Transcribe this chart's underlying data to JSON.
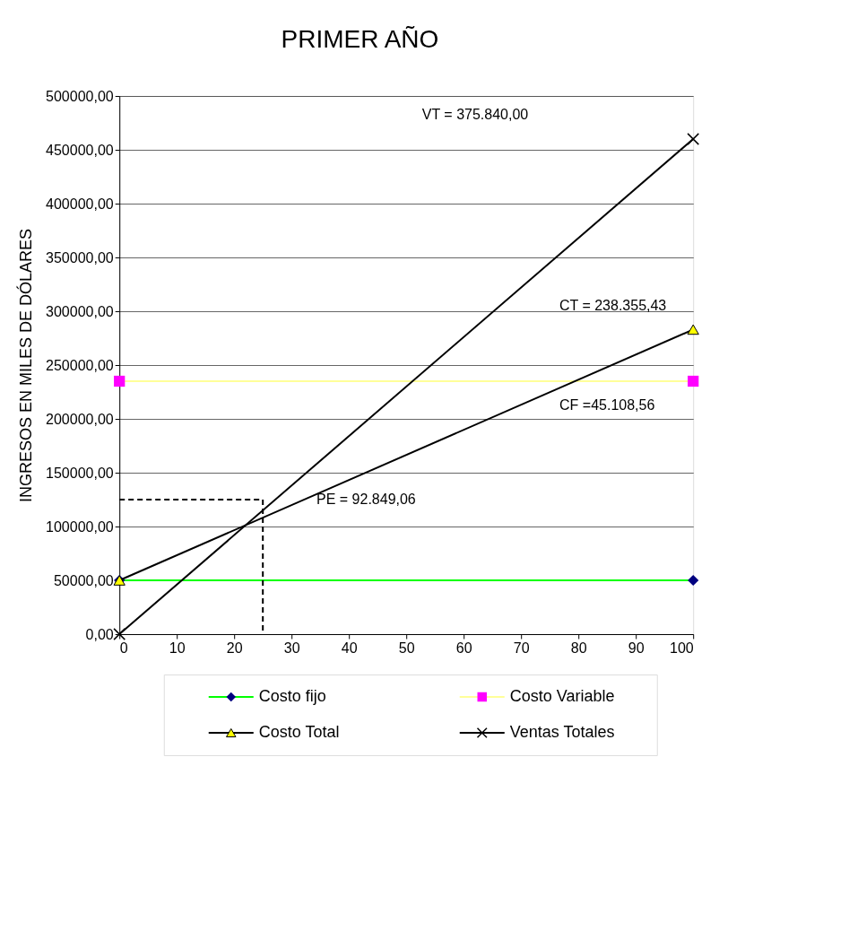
{
  "chart_data": {
    "type": "line",
    "title": "PRIMER AÑO",
    "ylabel": "INGRESOS EN MILES DE DÓLARES",
    "x": [
      0,
      100
    ],
    "series": [
      {
        "name": "Costo fijo",
        "color": "#00ff00",
        "colors": [
          "#000080",
          "#000080"
        ],
        "marker": "diamond",
        "values": [
          50000,
          50000
        ]
      },
      {
        "name": "Costo Variable",
        "color": "#ffff99",
        "colors": [
          "#ff00ff",
          "#ff00ff"
        ],
        "marker": "square",
        "values": [
          235000,
          235000
        ]
      },
      {
        "name": "Costo Total",
        "color": "#000000",
        "colors": [
          "#ffff00",
          "#ffff00"
        ],
        "marker": "triangle",
        "values": [
          50000,
          283000
        ]
      },
      {
        "name": "Ventas Totales",
        "color": "#000000",
        "colors": [
          "#000000",
          "#000000"
        ],
        "marker": "cross",
        "values": [
          0,
          460000
        ]
      }
    ],
    "annotations": [
      "VT = 375.840,00",
      "CT = 238.355,43",
      "CF =45.108,56",
      "PE =  92.849,06"
    ],
    "ref_lines": [
      {
        "axis": "x",
        "value": 25,
        "line_style": "dashed"
      },
      {
        "axis": "y",
        "value": 125000,
        "line_style": "dashed"
      }
    ],
    "line_style": "solid",
    "xlim": [
      0,
      100
    ],
    "xticks": [
      0,
      10,
      20,
      30,
      40,
      50,
      60,
      70,
      80,
      90,
      100
    ],
    "ylim": [
      0,
      500000
    ],
    "yticks": [
      {
        "value": 0,
        "label": "0,00"
      },
      {
        "value": 50000,
        "label": "50000,00"
      },
      {
        "value": 100000,
        "label": "100000,00"
      },
      {
        "value": 150000,
        "label": "150000,00"
      },
      {
        "value": 200000,
        "label": "200000,00"
      },
      {
        "value": 250000,
        "label": "250000,00"
      },
      {
        "value": 300000,
        "label": "300000,00"
      },
      {
        "value": 350000,
        "label": "350000,00"
      },
      {
        "value": 400000,
        "label": "400000,00"
      },
      {
        "value": 450000,
        "label": "450000,00"
      },
      {
        "value": 500000,
        "label": "500000,00"
      }
    ],
    "grid": "y",
    "legend": "bottom"
  }
}
